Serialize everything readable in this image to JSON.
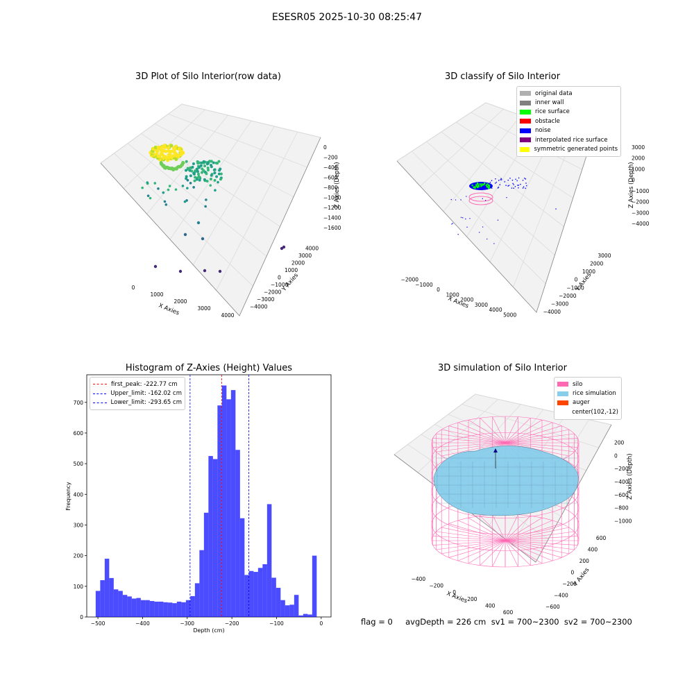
{
  "title": "ESESR05 2025-10-30 08:25:47",
  "footer": {
    "text": "flag = 0     avgDepth = 226 cm  sv1 = 700~2300  sv2 = 700~2300"
  },
  "chart_data": [
    {
      "type": "scatter",
      "title": "3D Plot of Silo Interior(row data)",
      "xlabel": "X Axies",
      "ylabel": "Y Axies",
      "zlabel": "Z Axies (Depth)",
      "x_ticks": [
        "0",
        "1000",
        "2000",
        "3000",
        "4000"
      ],
      "y_ticks": [
        "−4000",
        "−3000",
        "−2000",
        "−1000",
        "0",
        "1000",
        "2000",
        "3000",
        "4000"
      ],
      "z_ticks": [
        "0",
        "−200",
        "−400",
        "−600",
        "−800",
        "−1000",
        "−1200",
        "−1400",
        "−1600"
      ],
      "colormap": "viridis",
      "grid": true
    },
    {
      "type": "scatter",
      "title": "3D classify of Silo Interior",
      "xlabel": "X Axies",
      "ylabel": "Y Axies",
      "zlabel": "Z Axies (Depth)",
      "x_ticks": [
        "−2000",
        "−1000",
        "0",
        "1000",
        "2000",
        "3000",
        "4000",
        "5000"
      ],
      "y_ticks": [
        "−4000",
        "−3000",
        "−2000",
        "−1000",
        "0",
        "1000",
        "2000",
        "3000"
      ],
      "z_ticks": [
        "3000",
        "2000",
        "1000",
        "0",
        "−1000",
        "−2000",
        "−3000",
        "−4000"
      ],
      "legend": [
        {
          "label": "original data",
          "color": "#b0b0b0"
        },
        {
          "label": "inner wall",
          "color": "#808080"
        },
        {
          "label": "rice surface",
          "color": "#00ff00"
        },
        {
          "label": "obstacle",
          "color": "#ff0000"
        },
        {
          "label": "noise",
          "color": "#0000ff"
        },
        {
          "label": "interpolated rice surface",
          "color": "#800080"
        },
        {
          "label": "symmetric generated points",
          "color": "#ffff00"
        }
      ],
      "legend_position": "top-right",
      "grid": true
    },
    {
      "type": "bar",
      "title": "Histogram of Z-Axies (Height) Values",
      "xlabel": "Depth (cm)",
      "ylabel": "Frequency",
      "xlim": [
        -525,
        22
      ],
      "ylim": [
        0,
        790
      ],
      "bar_color": "#0000ff",
      "bin_start": -505,
      "bin_width": 10.1,
      "values": [
        85,
        120,
        190,
        127,
        90,
        85,
        72,
        67,
        60,
        62,
        55,
        55,
        52,
        50,
        50,
        48,
        47,
        45,
        50,
        48,
        55,
        68,
        110,
        218,
        340,
        525,
        515,
        690,
        755,
        710,
        740,
        545,
        322,
        137,
        150,
        147,
        160,
        172,
        368,
        128,
        95,
        55,
        38,
        40,
        72,
        5,
        10,
        8,
        200
      ],
      "x_ticks": [
        -500,
        -400,
        -300,
        -200,
        -100,
        0
      ],
      "y_ticks": [
        0,
        100,
        200,
        300,
        400,
        500,
        600,
        700
      ],
      "lines": [
        {
          "label": "first_peak: -222.77 cm",
          "x": -222.77,
          "color": "#ff0000"
        },
        {
          "label": "Upper_limit: -162.02 cm",
          "x": -162.02,
          "color": "#0000ff"
        },
        {
          "label": "Lower_limit: -293.65 cm",
          "x": -293.65,
          "color": "#0000ff"
        }
      ],
      "legend_position": "top-left"
    },
    {
      "type": "scatter",
      "title": "3D simulation of Silo Interior",
      "xlabel": "X Axies",
      "ylabel": "Y Axies",
      "zlabel": "Z Axies (Depth)",
      "x_ticks": [
        "−400",
        "−200",
        "0",
        "200",
        "400",
        "600"
      ],
      "y_ticks": [
        "−600",
        "−400",
        "−200",
        "0",
        "200",
        "400",
        "600"
      ],
      "z_ticks": [
        "200",
        "0",
        "−200",
        "−400",
        "−600",
        "−800",
        "−1000"
      ],
      "legend": [
        {
          "label": "silo",
          "color": "#ff69b4"
        },
        {
          "label": "rice simulation",
          "color": "#87ceeb"
        },
        {
          "label": "auger",
          "color": "#ff4500"
        },
        {
          "label": "center(102,-12)",
          "color": ""
        }
      ],
      "legend_position": "top-right",
      "grid": true
    }
  ]
}
